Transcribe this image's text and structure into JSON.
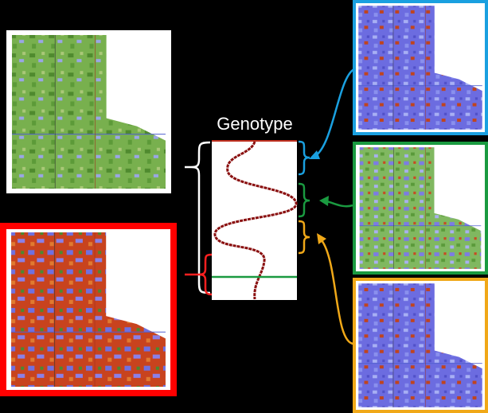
{
  "label": "Genotype"
}
